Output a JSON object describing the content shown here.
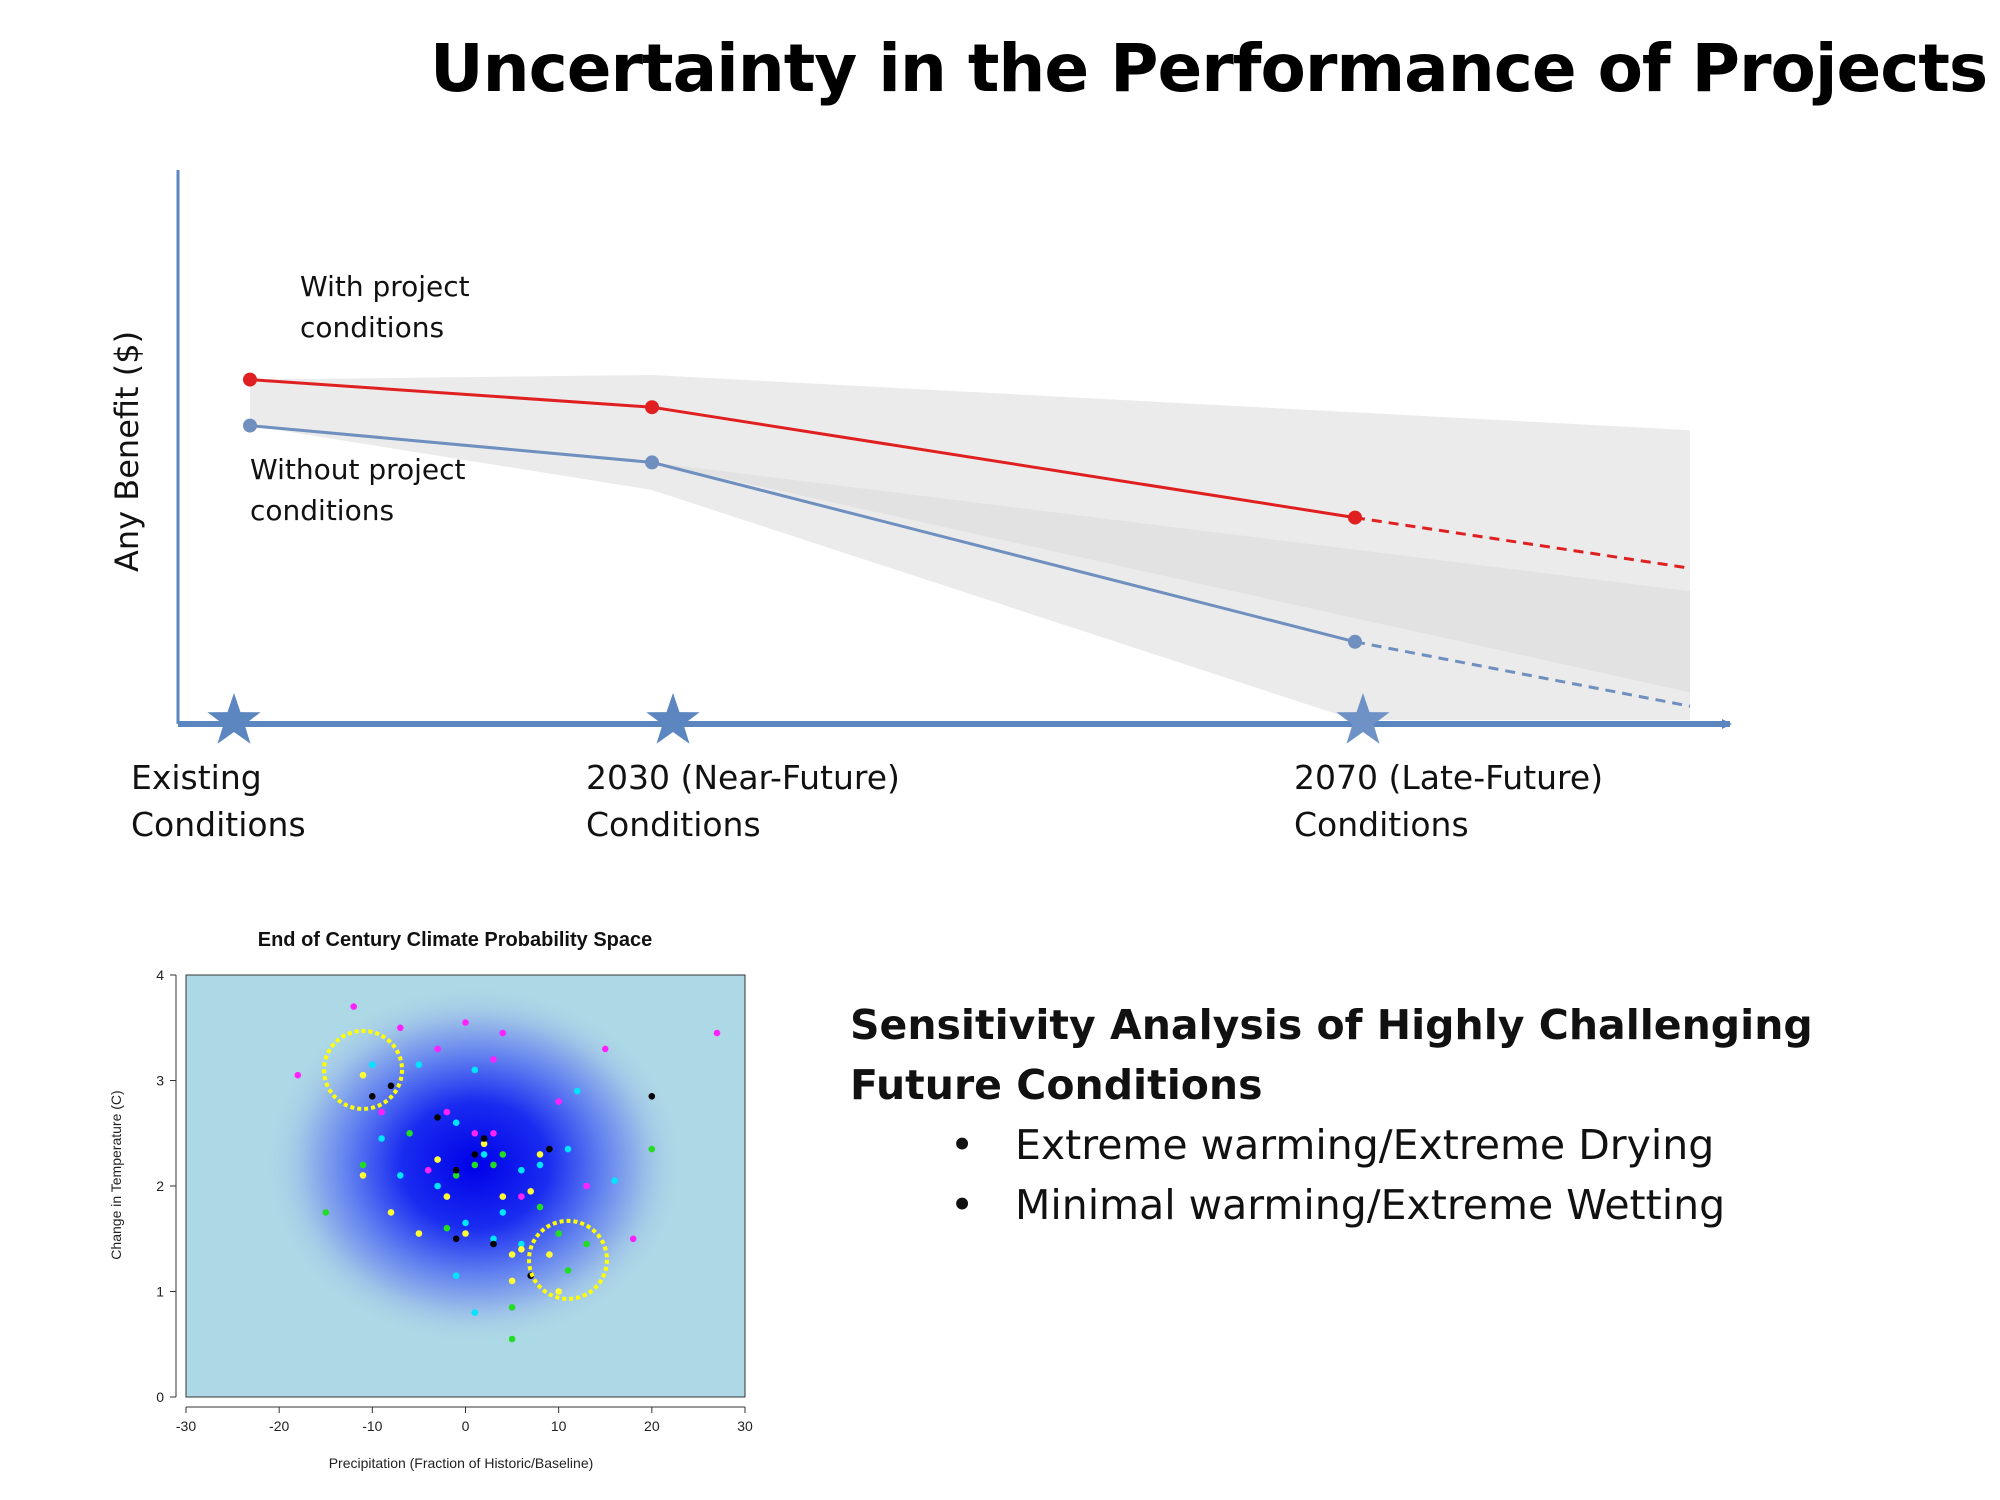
{
  "slide": {
    "title": "Uncertainty in the Performance of Projects"
  },
  "chart_data": [
    {
      "type": "line",
      "title": "",
      "ylabel": "Any Benefit ($)",
      "xlabel": "",
      "categories": [
        "Existing\nConditions",
        "2030 (Near-Future)\nConditions",
        "2070 (Late-Future)\nConditions"
      ],
      "series": [
        {
          "name": "With project\nconditions",
          "values": [
            7.4,
            6.8,
            4.4
          ],
          "extrapolated_end": 3.3,
          "color": "#e02020"
        },
        {
          "name": "Without project\nconditions",
          "values": [
            6.4,
            5.6,
            1.7
          ],
          "extrapolated_end": 0.3,
          "color": "#6f8fbf"
        }
      ],
      "uncertainty_band": {
        "upper": [
          7.4,
          7.5,
          6.3
        ],
        "lower": [
          6.4,
          5.0,
          0.0
        ]
      },
      "axis_color": "#5b86c0",
      "band_color": "#ebebeb"
    },
    {
      "type": "scatter",
      "title": "End of Century Climate Probability Space",
      "xlabel": "Precipitation (Fraction of Historic/Baseline)",
      "ylabel": "Change in Temperature (C)",
      "xlim": [
        -30,
        30
      ],
      "ylim": [
        0,
        4
      ],
      "xticks": [
        "-30",
        "-20",
        "-10",
        "0",
        "10",
        "20",
        "30"
      ],
      "yticks": [
        "0",
        "1",
        "2",
        "3",
        "4"
      ],
      "density_center": [
        1,
        2.2
      ],
      "highlight_regions": [
        {
          "label": "Extreme warming/Extreme Drying",
          "x": -11,
          "y": 3.1
        },
        {
          "label": "Minimal warming/Extreme Wetting",
          "x": 11,
          "y": 1.3
        }
      ],
      "points": [
        {
          "x": -12,
          "y": 3.7,
          "c": "#ff22ff"
        },
        {
          "x": -7,
          "y": 3.5,
          "c": "#ff22ff"
        },
        {
          "x": -3,
          "y": 3.3,
          "c": "#ff22ff"
        },
        {
          "x": 0,
          "y": 3.55,
          "c": "#ff22ff"
        },
        {
          "x": 4,
          "y": 3.45,
          "c": "#ff22ff"
        },
        {
          "x": 15,
          "y": 3.3,
          "c": "#ff22ff"
        },
        {
          "x": 27,
          "y": 3.45,
          "c": "#ff22ff"
        },
        {
          "x": -18,
          "y": 3.05,
          "c": "#ff22ff"
        },
        {
          "x": 18,
          "y": 1.5,
          "c": "#ff22ff"
        },
        {
          "x": 1,
          "y": 2.5,
          "c": "#ff22ff"
        },
        {
          "x": 3,
          "y": 2.5,
          "c": "#ff22ff"
        },
        {
          "x": -4,
          "y": 2.15,
          "c": "#ff22ff"
        },
        {
          "x": 10,
          "y": 2.8,
          "c": "#ff22ff"
        },
        {
          "x": 6,
          "y": 1.9,
          "c": "#ff22ff"
        },
        {
          "x": -2,
          "y": 2.7,
          "c": "#ff22ff"
        },
        {
          "x": -9,
          "y": 2.7,
          "c": "#ff22ff"
        },
        {
          "x": 3,
          "y": 3.2,
          "c": "#ff22ff"
        },
        {
          "x": 13,
          "y": 2.0,
          "c": "#ff22ff"
        },
        {
          "x": -10,
          "y": 3.15,
          "c": "#00e5ff"
        },
        {
          "x": -5,
          "y": 3.15,
          "c": "#00e5ff"
        },
        {
          "x": 1,
          "y": 3.1,
          "c": "#00e5ff"
        },
        {
          "x": -1,
          "y": 2.6,
          "c": "#00e5ff"
        },
        {
          "x": 2,
          "y": 2.3,
          "c": "#00e5ff"
        },
        {
          "x": 6,
          "y": 2.15,
          "c": "#00e5ff"
        },
        {
          "x": 16,
          "y": 2.05,
          "c": "#00e5ff"
        },
        {
          "x": 11,
          "y": 2.35,
          "c": "#00e5ff"
        },
        {
          "x": -7,
          "y": 2.1,
          "c": "#00e5ff"
        },
        {
          "x": -3,
          "y": 2.0,
          "c": "#00e5ff"
        },
        {
          "x": 0,
          "y": 1.65,
          "c": "#00e5ff"
        },
        {
          "x": 3,
          "y": 1.5,
          "c": "#00e5ff"
        },
        {
          "x": -1,
          "y": 1.15,
          "c": "#00e5ff"
        },
        {
          "x": 1,
          "y": 0.8,
          "c": "#00e5ff"
        },
        {
          "x": 6,
          "y": 1.45,
          "c": "#00e5ff"
        },
        {
          "x": 8,
          "y": 2.2,
          "c": "#00e5ff"
        },
        {
          "x": -9,
          "y": 2.45,
          "c": "#00e5ff"
        },
        {
          "x": 4,
          "y": 1.75,
          "c": "#00e5ff"
        },
        {
          "x": 12,
          "y": 2.9,
          "c": "#00e5ff"
        },
        {
          "x": -11,
          "y": 3.05,
          "c": "#ffff33"
        },
        {
          "x": -11,
          "y": 2.1,
          "c": "#ffff33"
        },
        {
          "x": -8,
          "y": 1.75,
          "c": "#ffff33"
        },
        {
          "x": -2,
          "y": 1.9,
          "c": "#ffff33"
        },
        {
          "x": 0,
          "y": 1.55,
          "c": "#ffff33"
        },
        {
          "x": 5,
          "y": 1.35,
          "c": "#ffff33"
        },
        {
          "x": 6,
          "y": 1.4,
          "c": "#ffff33"
        },
        {
          "x": 5,
          "y": 1.1,
          "c": "#ffff33"
        },
        {
          "x": 10,
          "y": 1.0,
          "c": "#ffff33"
        },
        {
          "x": 9,
          "y": 1.35,
          "c": "#ffff33"
        },
        {
          "x": 4,
          "y": 1.9,
          "c": "#ffff33"
        },
        {
          "x": 8,
          "y": 2.3,
          "c": "#ffff33"
        },
        {
          "x": -3,
          "y": 2.25,
          "c": "#ffff33"
        },
        {
          "x": 2,
          "y": 2.4,
          "c": "#ffff33"
        },
        {
          "x": 7,
          "y": 1.95,
          "c": "#ffff33"
        },
        {
          "x": -5,
          "y": 1.55,
          "c": "#ffff33"
        },
        {
          "x": -15,
          "y": 1.75,
          "c": "#22dd22"
        },
        {
          "x": -11,
          "y": 2.2,
          "c": "#22dd22"
        },
        {
          "x": -6,
          "y": 2.5,
          "c": "#22dd22"
        },
        {
          "x": -1,
          "y": 2.1,
          "c": "#22dd22"
        },
        {
          "x": 1,
          "y": 2.2,
          "c": "#22dd22"
        },
        {
          "x": 3,
          "y": 2.2,
          "c": "#22dd22"
        },
        {
          "x": 4,
          "y": 2.3,
          "c": "#22dd22"
        },
        {
          "x": 10,
          "y": 1.55,
          "c": "#22dd22"
        },
        {
          "x": 13,
          "y": 1.45,
          "c": "#22dd22"
        },
        {
          "x": 11,
          "y": 1.2,
          "c": "#22dd22"
        },
        {
          "x": 5,
          "y": 0.85,
          "c": "#22dd22"
        },
        {
          "x": 5,
          "y": 0.55,
          "c": "#22dd22"
        },
        {
          "x": 20,
          "y": 2.35,
          "c": "#22dd22"
        },
        {
          "x": 8,
          "y": 1.8,
          "c": "#22dd22"
        },
        {
          "x": -2,
          "y": 1.6,
          "c": "#22dd22"
        },
        {
          "x": -10,
          "y": 2.85,
          "c": "#000000"
        },
        {
          "x": -8,
          "y": 2.95,
          "c": "#000000"
        },
        {
          "x": -3,
          "y": 2.65,
          "c": "#000000"
        },
        {
          "x": -1,
          "y": 2.15,
          "c": "#000000"
        },
        {
          "x": 1,
          "y": 2.3,
          "c": "#000000"
        },
        {
          "x": 2,
          "y": 2.45,
          "c": "#000000"
        },
        {
          "x": 3,
          "y": 1.45,
          "c": "#000000"
        },
        {
          "x": 9,
          "y": 2.35,
          "c": "#000000"
        },
        {
          "x": 20,
          "y": 2.85,
          "c": "#000000"
        },
        {
          "x": -1,
          "y": 1.5,
          "c": "#000000"
        },
        {
          "x": 7,
          "y": 1.15,
          "c": "#000000"
        }
      ]
    }
  ],
  "sensitivity": {
    "title": "Sensitivity Analysis of Highly Challenging Future Conditions",
    "bullets": [
      "Extreme warming/Extreme Drying",
      "Minimal warming/Extreme Wetting"
    ],
    "bullet_glyph": "•"
  }
}
